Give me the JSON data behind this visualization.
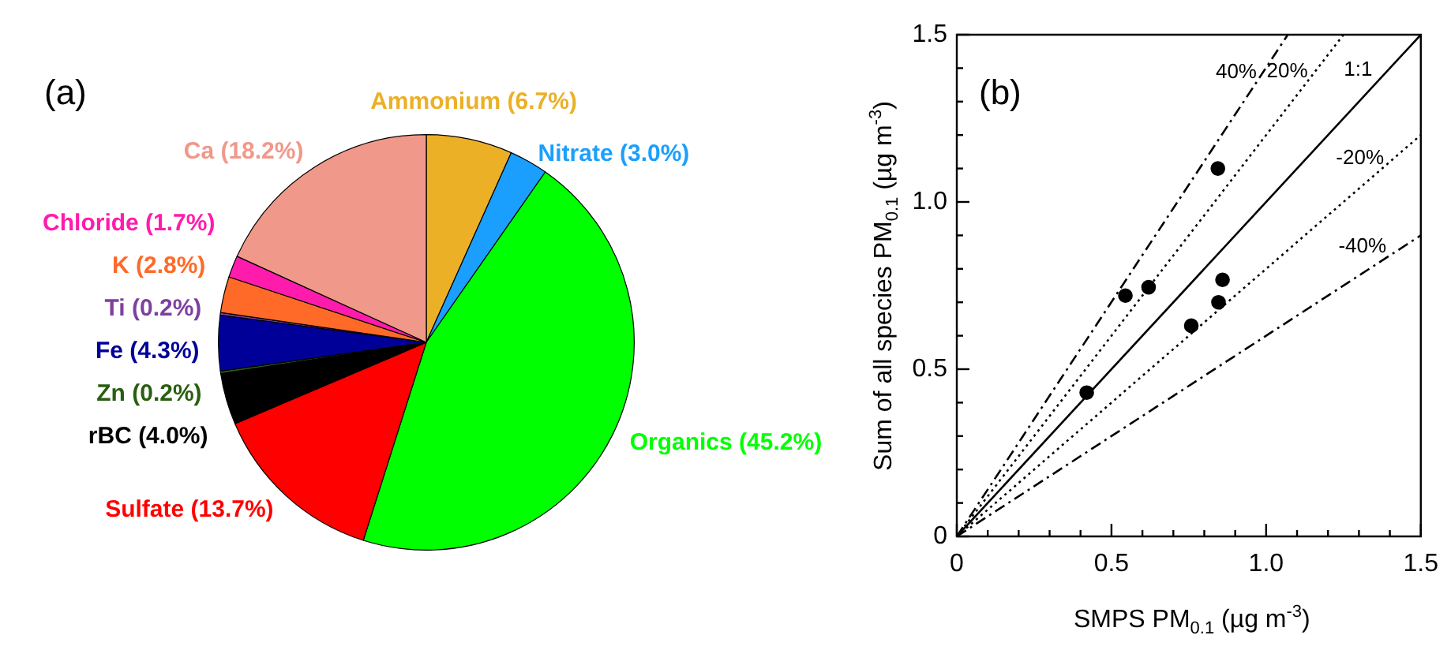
{
  "chart_data": [
    {
      "type": "pie",
      "annotations": [
        "(a)"
      ],
      "categories": [
        "Ammonium (6.7%)",
        "Nitrate (3.0%)",
        "Organics (45.2%)",
        "Sulfate (13.7%)",
        "rBC (4.0%)",
        "Zn (0.2%)",
        "Fe (4.3%)",
        "Ti (0.2%)",
        "K (2.8%)",
        "Chloride (1.7%)",
        "Ca (18.2%)"
      ],
      "values": [
        6.7,
        3.0,
        45.2,
        13.7,
        4.0,
        0.2,
        4.3,
        0.2,
        2.8,
        1.7,
        18.2
      ],
      "colors": [
        "#ebb026",
        "#1a9fff",
        "#00ff00",
        "#ff0000",
        "#000000",
        "#2a5e10",
        "#000099",
        "#7f3fa0",
        "#ff6a28",
        "#ff1cac",
        "#f0988a"
      ]
    },
    {
      "type": "scatter",
      "annotations": [
        "(b)"
      ],
      "xlabel": "SMPS PM$_{0.1}$ (µg m$^{-3}$)",
      "ylabel": "Sum of all species PM$_{0.1}$ (µg m$^{-3}$)",
      "xlim": [
        0,
        1.5
      ],
      "ylim": [
        0,
        1.5
      ],
      "xticks": [
        0,
        {
          "value": 0.1,
          "label": null
        },
        {
          "value": 0.2,
          "label": null
        },
        {
          "value": 0.3,
          "label": null
        },
        {
          "value": 0.4,
          "label": null
        },
        0.5,
        {
          "value": 0.6,
          "label": null
        },
        {
          "value": 0.7,
          "label": null
        },
        {
          "value": 0.8,
          "label": null
        },
        {
          "value": 0.9,
          "label": null
        },
        {
          "value": 1,
          "label": "1.0"
        },
        {
          "value": 1.1,
          "label": null
        },
        {
          "value": 1.2,
          "label": null
        },
        {
          "value": 1.3,
          "label": null
        },
        {
          "value": 1.4,
          "label": null
        },
        1.5
      ],
      "yticks": [
        0,
        {
          "value": 0.1,
          "label": null
        },
        {
          "value": 0.2,
          "label": null
        },
        {
          "value": 0.3,
          "label": null
        },
        {
          "value": 0.4,
          "label": null
        },
        0.5,
        {
          "value": 0.6,
          "label": null
        },
        {
          "value": 0.7,
          "label": null
        },
        {
          "value": 0.8,
          "label": null
        },
        {
          "value": 0.9,
          "label": null
        },
        {
          "value": 1,
          "label": "1.0"
        },
        {
          "value": 1.1,
          "label": null
        },
        {
          "value": 1.2,
          "label": null
        },
        {
          "value": 1.3,
          "label": null
        },
        {
          "value": 1.4,
          "label": null
        },
        1.5
      ],
      "series": [
        {
          "type": "scatter",
          "color": "#000000",
          "marker": "circle",
          "x": [
            0.42,
            0.545,
            0.62,
            0.844,
            0.758,
            0.846,
            0.859
          ],
          "values": [
            0.43,
            0.72,
            0.745,
            1.1,
            0.63,
            0.7,
            0.767
          ]
        },
        {
          "name": "1:1",
          "type": "line",
          "color": "#000000",
          "line_style": "solid",
          "marker": "none",
          "x": [
            0,
            1.5
          ],
          "values": [
            0,
            1.5
          ]
        },
        {
          "name": "20%",
          "type": "line",
          "color": "#000000",
          "line_style": "dotted",
          "marker": "none",
          "x": [
            0,
            1.25
          ],
          "values": [
            0,
            1.5
          ]
        },
        {
          "name": "-20%",
          "type": "line",
          "color": "#000000",
          "line_style": "dotted",
          "marker": "none",
          "x": [
            0,
            1.5
          ],
          "values": [
            0,
            1.2
          ]
        },
        {
          "name": "40%",
          "type": "line",
          "color": "#000000",
          "line_style": "dashed",
          "marker": "none",
          "x": [
            0,
            1.07
          ],
          "values": [
            0,
            1.5
          ]
        },
        {
          "name": "-40%",
          "type": "line",
          "color": "#000000",
          "line_style": "dashed",
          "marker": "none",
          "x": [
            0,
            1.5
          ],
          "values": [
            0,
            0.9
          ]
        }
      ]
    }
  ]
}
